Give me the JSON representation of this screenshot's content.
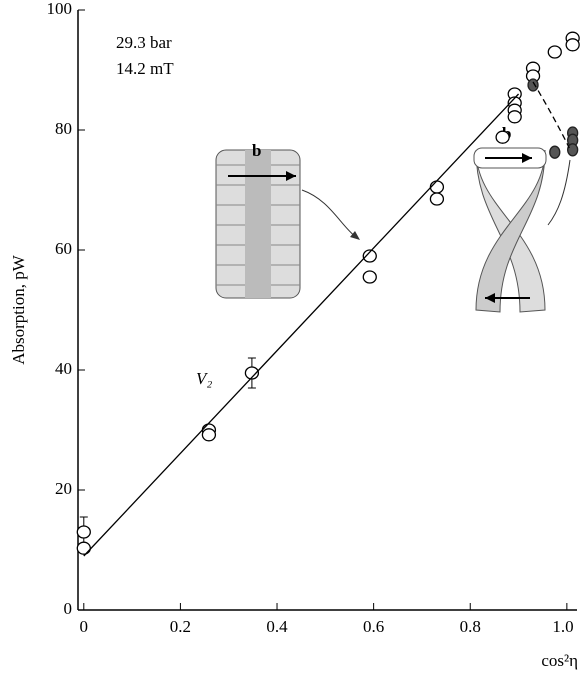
{
  "chart_data": {
    "type": "scatter",
    "xlabel": "cos²η",
    "ylabel": "Absorption, pW",
    "annotations": [
      "29.3 bar",
      "14.2 mT",
      "V₂",
      "b",
      "b"
    ],
    "xlim": [
      -0.012,
      1.021
    ],
    "ylim": [
      0,
      100
    ],
    "xticks": [
      0,
      0.2,
      0.4,
      0.6,
      0.8,
      {
        "value": 1,
        "label": "1.0"
      }
    ],
    "yticks": [
      0,
      20,
      40,
      60,
      80,
      100
    ],
    "series": [
      {
        "marker": "open",
        "color": "#000000",
        "x": [
          0,
          0,
          0.259,
          0.259,
          0.348,
          0.592,
          0.592,
          0.731,
          0.731,
          0.867,
          0.892,
          0.892,
          0.892,
          0.892,
          0.93,
          0.93,
          0.975,
          1.012,
          1.012
        ],
        "values": [
          13,
          10.3,
          30,
          29.2,
          39.5,
          59,
          55.5,
          70.5,
          68.5,
          78.8,
          86,
          84.5,
          83.3,
          82.2,
          90.3,
          89,
          93,
          95.3,
          94.2
        ],
        "errors": [
          2.5,
          null,
          null,
          null,
          2.5,
          null,
          null,
          null,
          null,
          null,
          null,
          null,
          null,
          null,
          null,
          null,
          null,
          null,
          null
        ]
      },
      {
        "marker": "filled",
        "color": "#555555",
        "x": [
          0.93,
          0.975,
          1.012,
          1.012,
          1.012
        ],
        "values": [
          87.5,
          76.3,
          79.5,
          78.3,
          76.7
        ]
      },
      {
        "style": "line",
        "color": "#000000",
        "x": [
          0,
          0.9
        ],
        "values": [
          9,
          86
        ]
      },
      {
        "style": "dashed",
        "color": "#000000",
        "x": [
          0.93,
          0.96,
          0.99,
          1.005
        ],
        "values": [
          88,
          84,
          79.5,
          77
        ]
      }
    ]
  }
}
